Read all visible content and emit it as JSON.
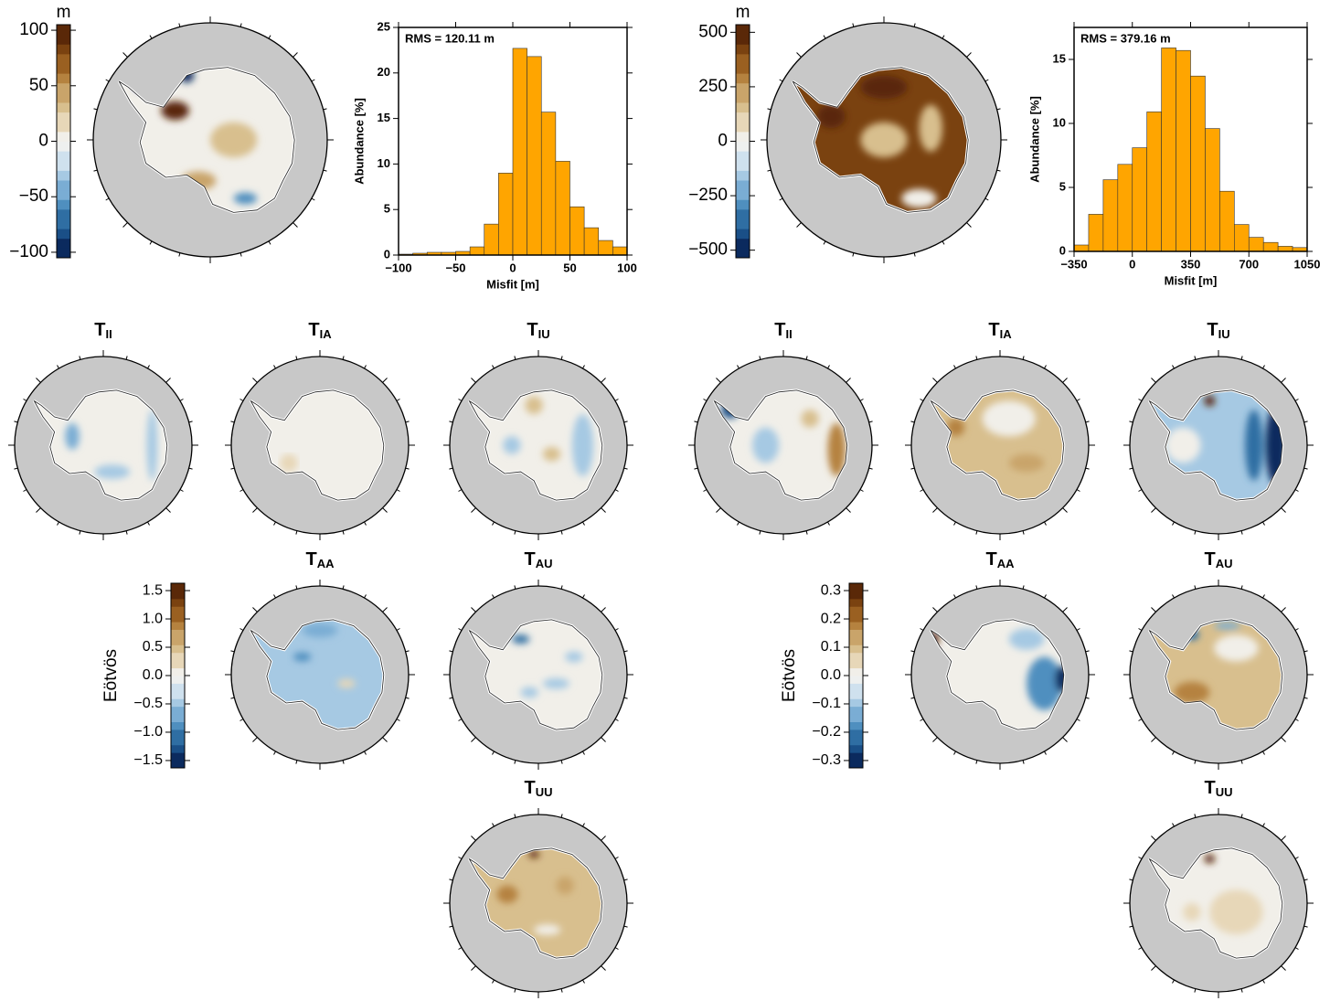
{
  "chart_data": [
    {
      "type": "colorbar",
      "label": "m",
      "ylim": [
        -105,
        105
      ],
      "yticks": [
        {
          "value": -100,
          "label": "−100"
        },
        {
          "value": -50,
          "label": "−50"
        },
        0,
        50,
        100
      ]
    },
    {
      "type": "histogram",
      "annotation": "RMS = 120.11 m",
      "x_label": "Misfit [m]",
      "y_label": "Abundance [%]",
      "color": "#ffa500",
      "bins": [
        -100,
        -87.5,
        -75,
        -62.5,
        -50,
        -37.5,
        -25,
        -12.5,
        0,
        12.5,
        25,
        37.5,
        50,
        62.5,
        75,
        87.5,
        100
      ],
      "values": [
        0.1,
        0.2,
        0.3,
        0.3,
        0.4,
        0.9,
        3.4,
        9.0,
        22.7,
        21.8,
        15.7,
        10.3,
        5.3,
        3.0,
        1.6,
        0.9
      ],
      "xlim": [
        -100,
        100
      ],
      "xticks": [
        {
          "value": -100,
          "label": "−100"
        },
        {
          "value": -50,
          "label": "−50"
        },
        0,
        50,
        100
      ],
      "ylim": [
        0,
        25
      ],
      "yticks": [
        0,
        5,
        10,
        15,
        20,
        25
      ]
    },
    {
      "type": "colorbar",
      "label": "m",
      "ylim": [
        -535,
        535
      ],
      "yticks": [
        {
          "value": -500,
          "label": "−500"
        },
        {
          "value": -250,
          "label": "−250"
        },
        0,
        250,
        500
      ]
    },
    {
      "type": "histogram",
      "annotation": "RMS = 379.16 m",
      "x_label": "Misfit [m]",
      "y_label": "Abundance [%]",
      "color": "#ffa500",
      "bins": [
        -350,
        -262.5,
        -175,
        -87.5,
        0,
        87.5,
        175,
        262.5,
        350,
        437.5,
        525,
        612.5,
        700,
        787.5,
        875,
        962.5,
        1050
      ],
      "values": [
        0.5,
        2.9,
        5.6,
        6.8,
        8.1,
        10.9,
        15.9,
        15.7,
        13.7,
        9.6,
        4.7,
        2.1,
        1.1,
        0.7,
        0.4,
        0.3
      ],
      "xlim": [
        -350,
        1050
      ],
      "xticks": [
        {
          "value": -350,
          "label": "−350"
        },
        0,
        350,
        700,
        1050
      ],
      "ylim": [
        0,
        17.5
      ],
      "yticks": [
        0,
        5,
        10,
        15
      ]
    },
    {
      "type": "colorbar",
      "label": "Eötvös",
      "ylim": [
        -1.63,
        1.63
      ],
      "yticks": [
        {
          "value": -1.5,
          "label": "−1.5"
        },
        {
          "value": -1.0,
          "label": "−1.0"
        },
        {
          "value": -0.5,
          "label": "−0.5"
        },
        {
          "value": 0,
          "label": "0.0"
        },
        0.5,
        {
          "value": 1.0,
          "label": "1.0"
        },
        1.5
      ]
    },
    {
      "type": "colorbar",
      "label": "Eötvös",
      "ylim": [
        -0.326,
        0.326
      ],
      "yticks": [
        {
          "value": -0.3,
          "label": "−0.3"
        },
        {
          "value": -0.2,
          "label": "−0.2"
        },
        {
          "value": -0.1,
          "label": "−0.1"
        },
        {
          "value": 0,
          "label": "0.0"
        },
        0.1,
        0.2,
        0.3
      ]
    }
  ],
  "maps": [
    {
      "title": "T",
      "subscript": "II"
    },
    {
      "title": "T",
      "subscript": "IA"
    },
    {
      "title": "T",
      "subscript": "IU"
    },
    {
      "title": "T",
      "subscript": "AA"
    },
    {
      "title": "T",
      "subscript": "AU"
    },
    {
      "title": "T",
      "subscript": "UU"
    },
    {
      "title": "T",
      "subscript": "II"
    },
    {
      "title": "T",
      "subscript": "IA"
    },
    {
      "title": "T",
      "subscript": "IU"
    },
    {
      "title": "T",
      "subscript": "AA"
    },
    {
      "title": "T",
      "subscript": "AU"
    },
    {
      "title": "T",
      "subscript": "UU"
    }
  ]
}
